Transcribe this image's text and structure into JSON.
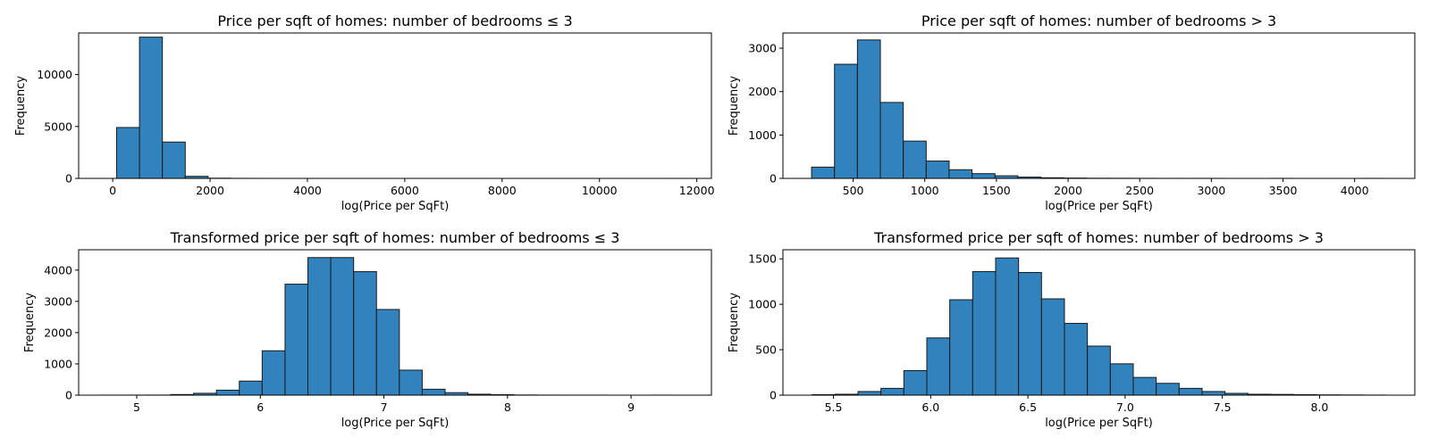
{
  "figure": {
    "background": "#ffffff",
    "bar_color": "#3182bd",
    "bar_edge_color": "#1a1a1a"
  },
  "chart_data": [
    {
      "type": "bar",
      "title": "Price per sqft of homes: number of bedrooms ≤ 3",
      "xlabel": "log(Price per SqFt)",
      "ylabel": "Frequency",
      "xlim": [
        -700,
        12300
      ],
      "ylim": [
        0,
        14000
      ],
      "xticks": [
        0,
        2000,
        4000,
        6000,
        8000,
        10000,
        12000
      ],
      "xtick_labels": [
        "0",
        "2000",
        "4000",
        "6000",
        "8000",
        "10000",
        "12000"
      ],
      "yticks": [
        0,
        5000,
        10000
      ],
      "ytick_labels": [
        "0",
        "5000",
        "10000"
      ],
      "bin_edges": [
        80,
        550,
        1020,
        1490,
        1960,
        2430,
        2900,
        3370,
        3840,
        4310,
        4780,
        5250,
        5720,
        6190,
        6660,
        7130,
        7600,
        8070,
        8540,
        9010,
        9480,
        9950,
        10420,
        10890,
        11360,
        11830
      ],
      "values": [
        4900,
        13600,
        3500,
        200,
        20,
        5,
        2,
        1,
        1,
        0,
        0,
        0,
        0,
        0,
        0,
        0,
        0,
        0,
        0,
        0,
        0,
        0,
        0,
        0,
        1
      ]
    },
    {
      "type": "bar",
      "title": "Price per sqft of homes: number of bedrooms > 3",
      "xlabel": "log(Price per SqFt)",
      "ylabel": "Frequency",
      "xlim": [
        10,
        4420
      ],
      "ylim": [
        0,
        3350
      ],
      "xticks": [
        500,
        1000,
        1500,
        2000,
        2500,
        3000,
        3500,
        4000
      ],
      "xtick_labels": [
        "500",
        "1000",
        "1500",
        "2000",
        "2500",
        "3000",
        "3500",
        "4000"
      ],
      "yticks": [
        0,
        1000,
        2000,
        3000
      ],
      "ytick_labels": [
        "0",
        "1000",
        "2000",
        "3000"
      ],
      "bin_edges": [
        210,
        370,
        530,
        690,
        850,
        1010,
        1170,
        1330,
        1490,
        1650,
        1810,
        1970,
        2130,
        2290,
        2450,
        2610,
        2770,
        2930,
        3090,
        3250,
        3410,
        3570,
        3730,
        3890,
        4050,
        4210
      ],
      "values": [
        260,
        2630,
        3190,
        1750,
        860,
        400,
        200,
        110,
        60,
        30,
        15,
        8,
        4,
        3,
        2,
        1,
        1,
        1,
        0,
        0,
        1,
        0,
        0,
        0,
        1
      ]
    },
    {
      "type": "bar",
      "title": "Transformed price per sqft of homes: number of bedrooms ≤ 3",
      "xlabel": "log(Price per SqFt)",
      "ylabel": "Frequency",
      "xlim": [
        4.53,
        9.65
      ],
      "ylim": [
        0,
        4650
      ],
      "xticks": [
        5,
        6,
        7,
        8,
        9
      ],
      "xtick_labels": [
        "5",
        "6",
        "7",
        "8",
        "9"
      ],
      "yticks": [
        0,
        1000,
        2000,
        3000,
        4000
      ],
      "ytick_labels": [
        "0",
        "1000",
        "2000",
        "3000",
        "4000"
      ],
      "bin_edges": [
        4.72,
        4.905,
        5.09,
        5.275,
        5.46,
        5.645,
        5.83,
        6.015,
        6.2,
        6.385,
        6.57,
        6.755,
        6.94,
        7.125,
        7.31,
        7.495,
        7.68,
        7.865,
        8.05,
        8.235,
        8.42,
        8.605,
        8.79,
        8.975,
        9.16,
        9.345
      ],
      "values": [
        1,
        2,
        3,
        20,
        60,
        160,
        450,
        1420,
        3550,
        4400,
        4400,
        3950,
        2740,
        800,
        190,
        80,
        30,
        15,
        5,
        2,
        1,
        1,
        0,
        0,
        1
      ]
    },
    {
      "type": "bar",
      "title": "Transformed price per sqft of homes: number of bedrooms > 3",
      "xlabel": "log(Price per SqFt)",
      "ylabel": "Frequency",
      "xlim": [
        5.24,
        8.49
      ],
      "ylim": [
        0,
        1600
      ],
      "xticks": [
        5.5,
        6.0,
        6.5,
        7.0,
        7.5,
        8.0
      ],
      "xtick_labels": [
        "5.5",
        "6.0",
        "6.5",
        "7.0",
        "7.5",
        "8.0"
      ],
      "yticks": [
        0,
        500,
        1000,
        1500
      ],
      "ytick_labels": [
        "0",
        "500",
        "1000",
        "1500"
      ],
      "bin_edges": [
        5.39,
        5.508,
        5.626,
        5.744,
        5.862,
        5.98,
        6.098,
        6.216,
        6.334,
        6.452,
        6.57,
        6.688,
        6.806,
        6.924,
        7.042,
        7.16,
        7.278,
        7.396,
        7.514,
        7.632,
        7.75,
        7.868,
        7.986,
        8.104,
        8.222,
        8.34
      ],
      "values": [
        5,
        10,
        40,
        75,
        270,
        630,
        1050,
        1360,
        1510,
        1350,
        1060,
        790,
        540,
        345,
        195,
        130,
        75,
        40,
        20,
        10,
        8,
        5,
        3,
        2,
        1
      ]
    }
  ]
}
